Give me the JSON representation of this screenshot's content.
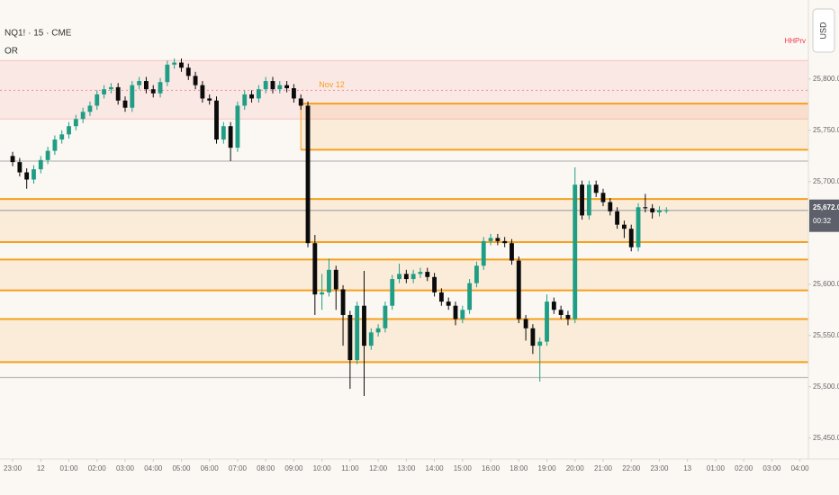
{
  "chart_data": {
    "type": "candlestick",
    "title": "NQ1! · 15 · CME",
    "indicator": "OR",
    "currency_button": "USD",
    "annotation": {
      "text": "Nov 12",
      "x": 41,
      "y": 25794,
      "color": "#f5a01e"
    },
    "corner_label": {
      "text": "HHPrv",
      "color": "#f23645"
    },
    "up_color": "#1f9e85",
    "down_color": "#0b0b0b",
    "open": [
      25725,
      25719,
      25709,
      25702,
      25712,
      25721,
      25730,
      25741,
      25746,
      25754,
      25761,
      25768,
      25774,
      25785,
      25790,
      25792,
      25779,
      25772,
      25794,
      25798,
      25790,
      25786,
      25797,
      25814,
      25816,
      25811,
      25803,
      25794,
      25781,
      25779,
      25741,
      25754,
      25733,
      25774,
      25785,
      25781,
      25790,
      25798,
      25790,
      25794,
      25791,
      25781,
      25774,
      25640,
      25590,
      25592,
      25614,
      25595,
      25570,
      25526,
      25579,
      25540,
      25553,
      25557,
      25579,
      25605,
      25610,
      25605,
      25610,
      25612,
      25607,
      25592,
      25583,
      25579,
      25566,
      25575,
      25601,
      25618,
      25642,
      25645,
      25642,
      25640,
      25623,
      25566,
      25557,
      25540,
      25544,
      25583,
      25575,
      25570,
      25566,
      25697,
      25667,
      25697,
      25689,
      25680,
      25671,
      25658,
      25654,
      25636,
      25675,
      25674,
      25670,
      25672
    ],
    "high": [
      25729,
      25723,
      25713,
      25716,
      25725,
      25734,
      25745,
      25750,
      25758,
      25765,
      25772,
      25778,
      25789,
      25794,
      25796,
      25796,
      25783,
      25798,
      25802,
      25802,
      25794,
      25801,
      25818,
      25820,
      25820,
      25815,
      25807,
      25798,
      25785,
      25783,
      25758,
      25758,
      25778,
      25789,
      25789,
      25794,
      25802,
      25802,
      25798,
      25798,
      25795,
      25785,
      25778,
      25648,
      25610,
      25625,
      25618,
      25599,
      25574,
      25583,
      25613,
      25557,
      25561,
      25583,
      25609,
      25620,
      25614,
      25614,
      25616,
      25616,
      25611,
      25596,
      25587,
      25583,
      25579,
      25605,
      25622,
      25646,
      25649,
      25649,
      25646,
      25644,
      25627,
      25570,
      25561,
      25548,
      25590,
      25587,
      25579,
      25574,
      25714,
      25701,
      25701,
      25701,
      25693,
      25684,
      25675,
      25662,
      25658,
      25679,
      25688,
      25678,
      25676,
      25675
    ],
    "low": [
      25715,
      25705,
      25693,
      25698,
      25708,
      25717,
      25726,
      25737,
      25742,
      25750,
      25757,
      25764,
      25770,
      25781,
      25786,
      25775,
      25768,
      25768,
      25790,
      25786,
      25782,
      25782,
      25793,
      25810,
      25807,
      25799,
      25790,
      25777,
      25775,
      25737,
      25737,
      25720,
      25729,
      25770,
      25777,
      25777,
      25786,
      25786,
      25786,
      25787,
      25777,
      25770,
      25636,
      25570,
      25575,
      25588,
      25575,
      25540,
      25498,
      25522,
      25491,
      25536,
      25549,
      25553,
      25575,
      25601,
      25601,
      25601,
      25606,
      25603,
      25588,
      25579,
      25575,
      25560,
      25562,
      25571,
      25597,
      25614,
      25638,
      25638,
      25636,
      25619,
      25562,
      25545,
      25532,
      25505,
      25540,
      25571,
      25566,
      25560,
      25562,
      25663,
      25663,
      25685,
      25676,
      25667,
      25654,
      25645,
      25632,
      25632,
      25670,
      25664,
      25666,
      25669
    ],
    "close": [
      25719,
      25709,
      25702,
      25712,
      25721,
      25730,
      25741,
      25746,
      25754,
      25761,
      25768,
      25774,
      25785,
      25790,
      25792,
      25779,
      25772,
      25794,
      25798,
      25790,
      25786,
      25797,
      25814,
      25816,
      25811,
      25803,
      25794,
      25781,
      25779,
      25741,
      25754,
      25733,
      25774,
      25785,
      25781,
      25790,
      25798,
      25790,
      25794,
      25791,
      25781,
      25774,
      25640,
      25590,
      25592,
      25614,
      25595,
      25570,
      25526,
      25579,
      25540,
      25553,
      25557,
      25579,
      25605,
      25610,
      25605,
      25610,
      25612,
      25607,
      25592,
      25583,
      25579,
      25566,
      25575,
      25601,
      25618,
      25642,
      25645,
      25642,
      25640,
      25623,
      25566,
      25557,
      25540,
      25544,
      25583,
      25575,
      25570,
      25566,
      25697,
      25667,
      25697,
      25689,
      25680,
      25671,
      25658,
      25654,
      25636,
      25675,
      25674,
      25670,
      25672,
      25672
    ],
    "xlim": [
      -1.8,
      113.2
    ],
    "xticks": [
      {
        "value": 0,
        "label": "23:00"
      },
      {
        "value": 4,
        "label": "12"
      },
      {
        "value": 8,
        "label": "01:00"
      },
      {
        "value": 12,
        "label": "02:00"
      },
      {
        "value": 16,
        "label": "03:00"
      },
      {
        "value": 20,
        "label": "04:00"
      },
      {
        "value": 24,
        "label": "05:00"
      },
      {
        "value": 28,
        "label": "06:00"
      },
      {
        "value": 32,
        "label": "07:00"
      },
      {
        "value": 36,
        "label": "08:00"
      },
      {
        "value": 40,
        "label": "09:00"
      },
      {
        "value": 44,
        "label": "10:00"
      },
      {
        "value": 48,
        "label": "11:00"
      },
      {
        "value": 52,
        "label": "12:00"
      },
      {
        "value": 56,
        "label": "13:00"
      },
      {
        "value": 60,
        "label": "14:00"
      },
      {
        "value": 64,
        "label": "15:00"
      },
      {
        "value": 68,
        "label": "16:00"
      },
      {
        "value": 72,
        "label": "18:00"
      },
      {
        "value": 76,
        "label": "19:00"
      },
      {
        "value": 80,
        "label": "20:00"
      },
      {
        "value": 84,
        "label": "21:00"
      },
      {
        "value": 88,
        "label": "22:00"
      },
      {
        "value": 92,
        "label": "23:00"
      },
      {
        "value": 96,
        "label": "13"
      },
      {
        "value": 100,
        "label": "01:00"
      },
      {
        "value": 104,
        "label": "02:00"
      },
      {
        "value": 108,
        "label": "03:00"
      },
      {
        "value": 112,
        "label": "04:00"
      }
    ],
    "ylim": [
      25434,
      25877
    ],
    "yticks": [
      {
        "value": 25450,
        "label": "25,450.00"
      },
      {
        "value": 25500,
        "label": "25,500.00"
      },
      {
        "value": 25550,
        "label": "25,550.00"
      },
      {
        "value": 25600,
        "label": "25,600.00"
      },
      {
        "value": 25700,
        "label": "25,700.00"
      },
      {
        "value": 25750,
        "label": "25,750.00"
      },
      {
        "value": 25800,
        "label": "25,800.00"
      }
    ],
    "zone": {
      "range": [
        25761,
        25818
      ],
      "mid": 25789,
      "color": "#f23645"
    },
    "bands": [
      {
        "range": [
          25731,
          25776
        ],
        "start": 41
      },
      {
        "range": [
          25641,
          25683
        ],
        "start": -1.8
      },
      {
        "range": [
          25594,
          25624
        ],
        "start": -1.8
      },
      {
        "range": [
          25524,
          25566
        ],
        "start": -1.8
      }
    ],
    "levels": [
      {
        "value": 25776,
        "start": 41
      },
      {
        "value": 25731,
        "start": 41
      },
      {
        "value": 25683,
        "start": -1.8
      },
      {
        "value": 25641,
        "start": -1.8
      },
      {
        "value": 25624,
        "start": -1.8
      },
      {
        "value": 25594,
        "start": -1.8
      },
      {
        "value": 25566,
        "start": -1.8
      },
      {
        "value": 25524,
        "start": -1.8
      }
    ],
    "level_color": "#f5a01e",
    "gray_levels": [
      25720,
      25509
    ],
    "last_price": {
      "value": 25672,
      "label": "25,672.00"
    },
    "countdown": "00:32"
  }
}
